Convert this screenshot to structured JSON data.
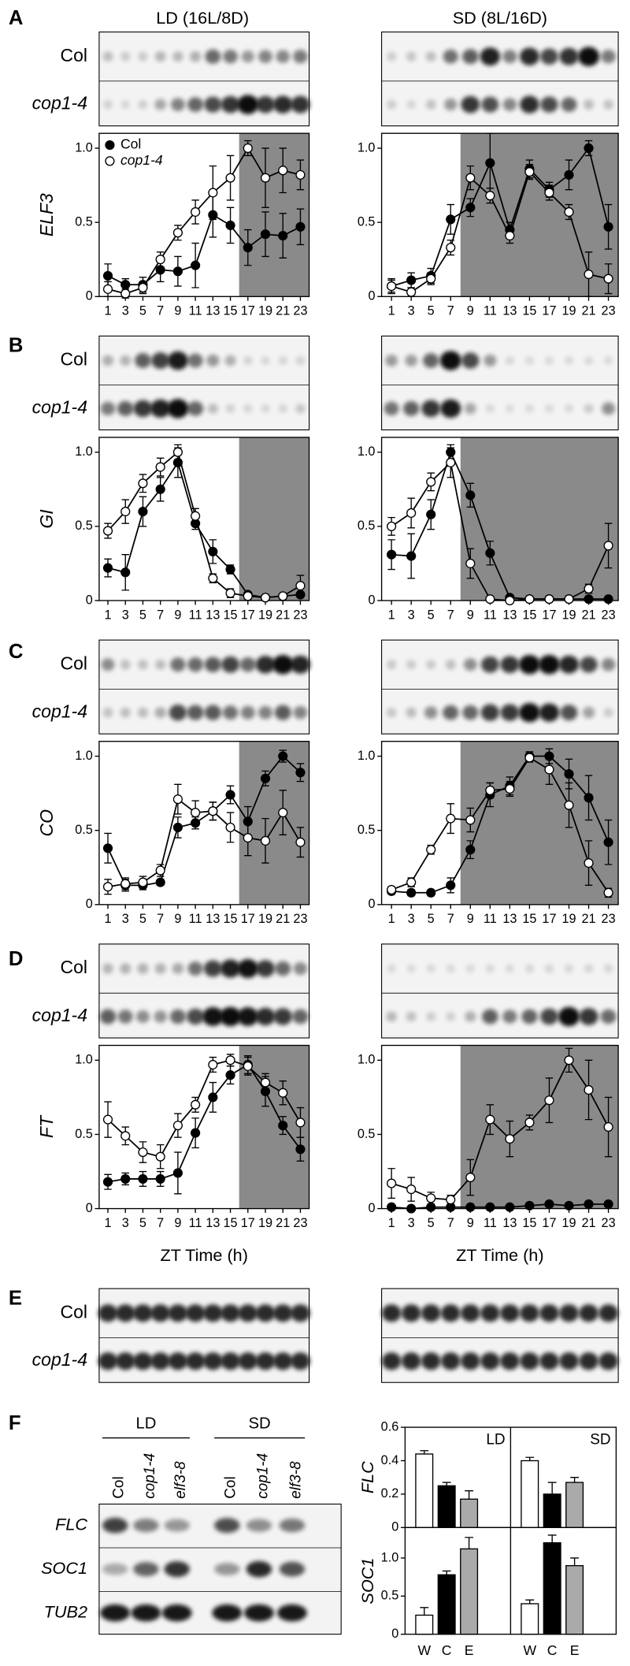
{
  "figure": {
    "panel_letters": [
      "A",
      "B",
      "C",
      "D",
      "E",
      "F"
    ],
    "conditions": [
      "LD (16L/8D)",
      "SD (8L/16D)"
    ],
    "blot_rows": [
      "Col",
      "cop1-4"
    ],
    "f_conditions": [
      "LD",
      "SD"
    ],
    "f_lanes": [
      "Col",
      "cop1-4",
      "elf3-8"
    ],
    "f_rows": [
      "FLC",
      "SOC1",
      "TUB2"
    ]
  },
  "chart_data": [
    {
      "type": "line",
      "ylabel": "ELF3",
      "x": [
        1,
        3,
        5,
        7,
        9,
        11,
        13,
        15,
        17,
        19,
        21,
        23
      ],
      "xlim": [
        0,
        24
      ],
      "xticks": [
        1,
        3,
        5,
        7,
        9,
        11,
        13,
        15,
        17,
        19,
        21,
        23
      ],
      "ylim": [
        0,
        1.1
      ],
      "yticks": [
        0,
        0.5,
        {
          "value": 1,
          "label": "1.0"
        }
      ],
      "dark_period": [
        16,
        24
      ],
      "legend": "upper-left",
      "series": [
        {
          "name": "Col",
          "color": "#000000",
          "values": [
            0.14,
            0.08,
            0.08,
            0.18,
            0.17,
            0.21,
            0.55,
            0.48,
            0.33,
            0.42,
            0.41,
            0.47
          ],
          "errors": [
            0.08,
            0.04,
            0.05,
            0.08,
            0.1,
            0.15,
            0.15,
            0.12,
            0.12,
            0.15,
            0.15,
            0.12
          ]
        },
        {
          "name": "cop1-4",
          "color": "#ffffff",
          "values": [
            0.05,
            0.02,
            0.06,
            0.25,
            0.43,
            0.57,
            0.7,
            0.8,
            1.0,
            0.8,
            0.85,
            0.82
          ],
          "errors": [
            0.05,
            0.03,
            0.04,
            0.05,
            0.05,
            0.08,
            0.18,
            0.15,
            0.05,
            0.2,
            0.15,
            0.1
          ]
        }
      ]
    },
    {
      "type": "line",
      "x": [
        1,
        3,
        5,
        7,
        9,
        11,
        13,
        15,
        17,
        19,
        21,
        23
      ],
      "xlim": [
        0,
        24
      ],
      "xticks": [
        1,
        3,
        5,
        7,
        9,
        11,
        13,
        15,
        17,
        19,
        21,
        23
      ],
      "ylim": [
        0,
        1.1
      ],
      "yticks": [
        0,
        0.5,
        {
          "value": 1,
          "label": "1.0"
        }
      ],
      "dark_period": [
        8,
        24
      ],
      "series": [
        {
          "color": "#000000",
          "values": [
            0.07,
            0.11,
            0.14,
            0.52,
            0.6,
            0.9,
            0.45,
            0.86,
            0.72,
            0.82,
            1.0,
            0.47
          ],
          "errors": [
            0.04,
            0.05,
            0.05,
            0.1,
            0.06,
            0.2,
            0.05,
            0.06,
            0.05,
            0.1,
            0.05,
            0.15
          ]
        },
        {
          "color": "#ffffff",
          "values": [
            0.07,
            0.03,
            0.12,
            0.33,
            0.8,
            0.68,
            0.41,
            0.84,
            0.7,
            0.57,
            0.15,
            0.12
          ],
          "errors": [
            0.05,
            0.03,
            0.04,
            0.05,
            0.08,
            0.05,
            0.05,
            0.05,
            0.05,
            0.05,
            0.15,
            0.1
          ]
        }
      ]
    },
    {
      "type": "line",
      "ylabel": "GI",
      "x": [
        1,
        3,
        5,
        7,
        9,
        11,
        13,
        15,
        17,
        19,
        21,
        23
      ],
      "xlim": [
        0,
        24
      ],
      "xticks": [
        1,
        3,
        5,
        7,
        9,
        11,
        13,
        15,
        17,
        19,
        21,
        23
      ],
      "ylim": [
        0,
        1.1
      ],
      "yticks": [
        0,
        0.5,
        {
          "value": 1,
          "label": "1.0"
        }
      ],
      "dark_period": [
        16,
        24
      ],
      "series": [
        {
          "color": "#000000",
          "values": [
            0.22,
            0.19,
            0.6,
            0.75,
            0.93,
            0.52,
            0.33,
            0.21,
            0.04,
            0.02,
            0.03,
            0.04
          ],
          "errors": [
            0.06,
            0.12,
            0.1,
            0.08,
            0.1,
            0.04,
            0.08,
            0.03,
            0.01,
            0.01,
            0.01,
            0.01
          ]
        },
        {
          "color": "#ffffff",
          "values": [
            0.47,
            0.6,
            0.79,
            0.9,
            1.0,
            0.57,
            0.15,
            0.05,
            0.03,
            0.02,
            0.03,
            0.1
          ],
          "errors": [
            0.05,
            0.08,
            0.06,
            0.06,
            0.05,
            0.05,
            0.03,
            0.03,
            0.01,
            0.01,
            0.01,
            0.07
          ]
        }
      ]
    },
    {
      "type": "line",
      "x": [
        1,
        3,
        5,
        7,
        9,
        11,
        13,
        15,
        17,
        19,
        21,
        23
      ],
      "xlim": [
        0,
        24
      ],
      "xticks": [
        1,
        3,
        5,
        7,
        9,
        11,
        13,
        15,
        17,
        19,
        21,
        23
      ],
      "ylim": [
        0,
        1.1
      ],
      "yticks": [
        0,
        0.5,
        {
          "value": 1,
          "label": "1.0"
        }
      ],
      "dark_period": [
        8,
        24
      ],
      "series": [
        {
          "color": "#000000",
          "values": [
            0.31,
            0.3,
            0.58,
            1.0,
            0.71,
            0.32,
            0.02,
            0.01,
            0.01,
            0.01,
            0.01,
            0.01
          ],
          "errors": [
            0.1,
            0.15,
            0.1,
            0.05,
            0.08,
            0.08,
            0.01,
            0.01,
            0.01,
            0.01,
            0.01,
            0.01
          ]
        },
        {
          "color": "#ffffff",
          "values": [
            0.5,
            0.59,
            0.8,
            0.93,
            0.25,
            0.01,
            0.0,
            0.01,
            0.01,
            0.01,
            0.08,
            0.37
          ],
          "errors": [
            0.06,
            0.1,
            0.06,
            0.1,
            0.1,
            0.01,
            0.01,
            0.01,
            0.01,
            0.01,
            0.03,
            0.15
          ]
        }
      ]
    },
    {
      "type": "line",
      "ylabel": "CO",
      "x": [
        1,
        3,
        5,
        7,
        9,
        11,
        13,
        15,
        17,
        19,
        21,
        23
      ],
      "xlim": [
        0,
        24
      ],
      "xticks": [
        1,
        3,
        5,
        7,
        9,
        11,
        13,
        15,
        17,
        19,
        21,
        23
      ],
      "ylim": [
        0,
        1.1
      ],
      "yticks": [
        0,
        0.5,
        {
          "value": 1,
          "label": "1.0"
        }
      ],
      "dark_period": [
        16,
        24
      ],
      "series": [
        {
          "color": "#000000",
          "values": [
            0.38,
            0.13,
            0.13,
            0.15,
            0.52,
            0.55,
            0.63,
            0.74,
            0.56,
            0.85,
            1.0,
            0.89
          ],
          "errors": [
            0.1,
            0.04,
            0.03,
            0.02,
            0.07,
            0.04,
            0.06,
            0.06,
            0.1,
            0.05,
            0.04,
            0.06
          ]
        },
        {
          "color": "#ffffff",
          "values": [
            0.12,
            0.14,
            0.15,
            0.23,
            0.71,
            0.62,
            0.63,
            0.52,
            0.45,
            0.43,
            0.62,
            0.42
          ],
          "errors": [
            0.05,
            0.04,
            0.04,
            0.04,
            0.1,
            0.08,
            0.06,
            0.1,
            0.12,
            0.15,
            0.15,
            0.1
          ]
        }
      ]
    },
    {
      "type": "line",
      "x": [
        1,
        3,
        5,
        7,
        9,
        11,
        13,
        15,
        17,
        19,
        21,
        23
      ],
      "xlim": [
        0,
        24
      ],
      "xticks": [
        1,
        3,
        5,
        7,
        9,
        11,
        13,
        15,
        17,
        19,
        21,
        23
      ],
      "ylim": [
        0,
        1.1
      ],
      "yticks": [
        0,
        0.5,
        {
          "value": 1,
          "label": "1.0"
        }
      ],
      "dark_period": [
        8,
        24
      ],
      "series": [
        {
          "color": "#000000",
          "values": [
            0.09,
            0.08,
            0.08,
            0.13,
            0.37,
            0.74,
            0.8,
            1.0,
            1.0,
            0.88,
            0.72,
            0.42
          ],
          "errors": [
            0.02,
            0.02,
            0.02,
            0.05,
            0.06,
            0.08,
            0.06,
            0.03,
            0.05,
            0.1,
            0.15,
            0.15
          ]
        },
        {
          "color": "#ffffff",
          "values": [
            0.1,
            0.15,
            0.37,
            0.58,
            0.57,
            0.77,
            0.78,
            0.99,
            0.91,
            0.67,
            0.28,
            0.08
          ],
          "errors": [
            0.02,
            0.03,
            0.03,
            0.1,
            0.08,
            0.05,
            0.05,
            0.03,
            0.1,
            0.15,
            0.15,
            0.03
          ]
        }
      ]
    },
    {
      "type": "line",
      "ylabel": "FT",
      "xlabel": "ZT Time (h)",
      "x": [
        1,
        3,
        5,
        7,
        9,
        11,
        13,
        15,
        17,
        19,
        21,
        23
      ],
      "xlim": [
        0,
        24
      ],
      "xticks": [
        1,
        3,
        5,
        7,
        9,
        11,
        13,
        15,
        17,
        19,
        21,
        23
      ],
      "ylim": [
        0,
        1.1
      ],
      "yticks": [
        0,
        0.5,
        {
          "value": 1,
          "label": "1.0"
        }
      ],
      "dark_period": [
        16,
        24
      ],
      "series": [
        {
          "color": "#000000",
          "values": [
            0.18,
            0.2,
            0.2,
            0.2,
            0.24,
            0.51,
            0.75,
            0.9,
            0.97,
            0.79,
            0.56,
            0.4
          ],
          "errors": [
            0.05,
            0.04,
            0.05,
            0.05,
            0.14,
            0.1,
            0.1,
            0.06,
            0.06,
            0.1,
            0.06,
            0.08
          ]
        },
        {
          "color": "#ffffff",
          "values": [
            0.6,
            0.49,
            0.38,
            0.35,
            0.56,
            0.7,
            0.97,
            1.0,
            0.96,
            0.85,
            0.78,
            0.58
          ],
          "errors": [
            0.12,
            0.06,
            0.07,
            0.08,
            0.08,
            0.05,
            0.05,
            0.04,
            0.06,
            0.06,
            0.08,
            0.1
          ]
        }
      ]
    },
    {
      "type": "line",
      "xlabel": "ZT Time (h)",
      "x": [
        1,
        3,
        5,
        7,
        9,
        11,
        13,
        15,
        17,
        19,
        21,
        23
      ],
      "xlim": [
        0,
        24
      ],
      "xticks": [
        1,
        3,
        5,
        7,
        9,
        11,
        13,
        15,
        17,
        19,
        21,
        23
      ],
      "ylim": [
        0,
        1.1
      ],
      "yticks": [
        0,
        0.5,
        {
          "value": 1,
          "label": "1.0"
        }
      ],
      "dark_period": [
        8,
        24
      ],
      "series": [
        {
          "color": "#000000",
          "values": [
            0.01,
            0.0,
            0.01,
            0.01,
            0.01,
            0.01,
            0.01,
            0.02,
            0.03,
            0.02,
            0.03,
            0.03
          ],
          "errors": [
            0.01,
            0.01,
            0.01,
            0.01,
            0.01,
            0.01,
            0.01,
            0.01,
            0.01,
            0.01,
            0.01,
            0.01
          ]
        },
        {
          "color": "#ffffff",
          "values": [
            0.17,
            0.13,
            0.07,
            0.06,
            0.21,
            0.6,
            0.47,
            0.58,
            0.73,
            1.0,
            0.8,
            0.55
          ],
          "errors": [
            0.1,
            0.08,
            0.04,
            0.03,
            0.12,
            0.1,
            0.12,
            0.05,
            0.15,
            0.08,
            0.2,
            0.2
          ]
        }
      ]
    },
    {
      "type": "bar",
      "ylabel": "FLC",
      "ylim": [
        0,
        0.6
      ],
      "yticks": [
        0,
        0.2,
        0.4,
        0.6
      ],
      "colors": [
        "#ffffff",
        "#000000",
        "#aaaaaa"
      ],
      "series": [
        {
          "name": "LD",
          "values": [
            0.44,
            0.25,
            0.17
          ],
          "errors": [
            0.02,
            0.02,
            0.05
          ]
        },
        {
          "name": "SD",
          "values": [
            0.4,
            0.2,
            0.27
          ],
          "errors": [
            0.02,
            0.07,
            0.03
          ]
        }
      ]
    },
    {
      "type": "bar",
      "ylabel": "SOC1",
      "ylim": [
        0,
        1.4
      ],
      "yticks": [
        0,
        0.5,
        {
          "value": 1,
          "label": "1.0"
        }
      ],
      "colors": [
        "#ffffff",
        "#000000",
        "#aaaaaa"
      ],
      "categories": [
        "W",
        "C",
        "E"
      ],
      "series": [
        {
          "values": [
            0.25,
            0.78,
            1.12
          ],
          "errors": [
            0.1,
            0.05,
            0.15
          ]
        },
        {
          "values": [
            0.4,
            1.2,
            0.9
          ],
          "errors": [
            0.05,
            0.1,
            0.1
          ]
        }
      ]
    }
  ]
}
